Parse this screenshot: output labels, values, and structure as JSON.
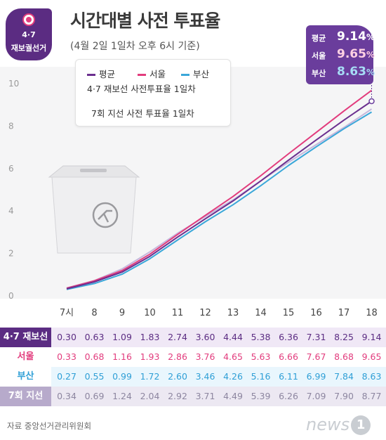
{
  "badge": {
    "number": "4·7",
    "label": "재보궐선거"
  },
  "title": "시간대별 사전 투표율",
  "subtitle": "(4월 2일 1일차 오후 6시 기준)",
  "legend": {
    "items": [
      {
        "label": "평균",
        "color": "#6b2f8f"
      },
      {
        "label": "서울",
        "color": "#e23c7d"
      },
      {
        "label": "부산",
        "color": "#3aa7d9"
      }
    ],
    "caption": "4·7 재보선 사전투표율 1일차",
    "item2": {
      "label": "7회 지선 사전 투표율 1일차",
      "color": "#c6b7dc"
    }
  },
  "callout": {
    "rows": [
      {
        "key": "평균",
        "value": "9.14",
        "unit": "%",
        "color": "#ffffff"
      },
      {
        "key": "서울",
        "value": "9.65",
        "unit": "%",
        "color": "#ffd1e3"
      },
      {
        "key": "부산",
        "value": "8.63",
        "unit": "%",
        "color": "#a6dcf5"
      }
    ]
  },
  "chart_data": {
    "type": "line",
    "x": [
      "7시",
      "8",
      "9",
      "10",
      "11",
      "12",
      "13",
      "14",
      "15",
      "16",
      "17",
      "18"
    ],
    "ylim": [
      0,
      10
    ],
    "yticks": [
      0,
      2,
      4,
      6,
      8,
      10
    ],
    "series": [
      {
        "name": "7회 지선",
        "color": "#c6b7dc",
        "values": [
          0.34,
          0.69,
          1.24,
          2.04,
          2.92,
          3.71,
          4.49,
          5.39,
          6.26,
          7.09,
          7.9,
          8.77
        ]
      },
      {
        "name": "부산",
        "color": "#3aa7d9",
        "values": [
          0.27,
          0.55,
          0.99,
          1.72,
          2.6,
          3.46,
          4.26,
          5.16,
          6.11,
          6.99,
          7.84,
          8.63
        ]
      },
      {
        "name": "서울",
        "color": "#e23c7d",
        "values": [
          0.33,
          0.68,
          1.16,
          1.93,
          2.86,
          3.76,
          4.65,
          5.63,
          6.66,
          7.67,
          8.68,
          9.65
        ]
      },
      {
        "name": "평균",
        "color": "#6b2f8f",
        "values": [
          0.3,
          0.63,
          1.09,
          1.83,
          2.74,
          3.6,
          4.44,
          5.38,
          6.36,
          7.31,
          8.25,
          9.14
        ]
      }
    ]
  },
  "table": {
    "rows": [
      {
        "label": "4·7 재보선",
        "label_bg": "#5b2c82",
        "cell_bg": "#f0e8f6",
        "text": "#5b2c82",
        "values": [
          "0.30",
          "0.63",
          "1.09",
          "1.83",
          "2.74",
          "3.60",
          "4.44",
          "5.38",
          "6.36",
          "7.31",
          "8.25",
          "9.14"
        ]
      },
      {
        "label": "서울",
        "label_bg": "#ffffff",
        "label_text": "#e23c7d",
        "cell_bg": "#ffffff",
        "text": "#e23c7d",
        "values": [
          "0.33",
          "0.68",
          "1.16",
          "1.93",
          "2.86",
          "3.76",
          "4.65",
          "5.63",
          "6.66",
          "7.67",
          "8.68",
          "9.65"
        ]
      },
      {
        "label": "부산",
        "label_bg": "#ffffff",
        "label_text": "#2f9fd6",
        "cell_bg": "#e9f6fd",
        "text": "#2f9fd6",
        "values": [
          "0.27",
          "0.55",
          "0.99",
          "1.72",
          "2.60",
          "3.46",
          "4.26",
          "5.16",
          "6.11",
          "6.99",
          "7.84",
          "8.63"
        ]
      },
      {
        "label": "7회 지선",
        "label_bg": "#b7aacb",
        "cell_bg": "#ece8f2",
        "text": "#8d86a0",
        "values": [
          "0.34",
          "0.69",
          "1.24",
          "2.04",
          "2.92",
          "3.71",
          "4.49",
          "5.39",
          "6.26",
          "7.09",
          "7.90",
          "8.77"
        ]
      }
    ]
  },
  "source": "자료 중앙선거관리위원회",
  "logo": {
    "text": "news",
    "mark": "1"
  }
}
